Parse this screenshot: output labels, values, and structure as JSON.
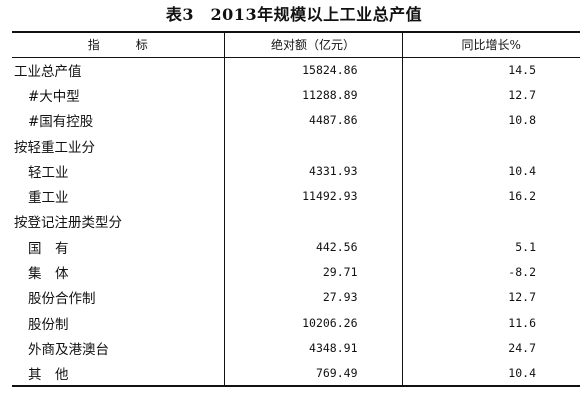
{
  "title": "表3　2013年规模以上工业总产值",
  "headers": {
    "indicator": "指　　　标",
    "absolute": "绝对额（亿元）",
    "growth": "同比增长%"
  },
  "rows": [
    {
      "label": "工业总产值",
      "absolute": "15824.86",
      "growth": "14.5"
    },
    {
      "label": "#大中型",
      "absolute": "11288.89",
      "growth": "12.7"
    },
    {
      "label": "#国有控股",
      "absolute": "4487.86",
      "growth": "10.8"
    },
    {
      "label": "按轻重工业分",
      "absolute": "",
      "growth": ""
    },
    {
      "label": "轻工业",
      "absolute": "4331.93",
      "growth": "10.4"
    },
    {
      "label": "重工业",
      "absolute": "11492.93",
      "growth": "16.2"
    },
    {
      "label": "按登记注册类型分",
      "absolute": "",
      "growth": ""
    },
    {
      "label": "国　有",
      "absolute": "442.56",
      "growth": "5.1"
    },
    {
      "label": "集　体",
      "absolute": "29.71",
      "growth": "-8.2"
    },
    {
      "label": "股份合作制",
      "absolute": "27.93",
      "growth": "12.7"
    },
    {
      "label": "股份制",
      "absolute": "10206.26",
      "growth": "11.6"
    },
    {
      "label": "外商及港澳台",
      "absolute": "4348.91",
      "growth": "24.7"
    },
    {
      "label": "其　他",
      "absolute": "769.49",
      "growth": "10.4"
    }
  ]
}
